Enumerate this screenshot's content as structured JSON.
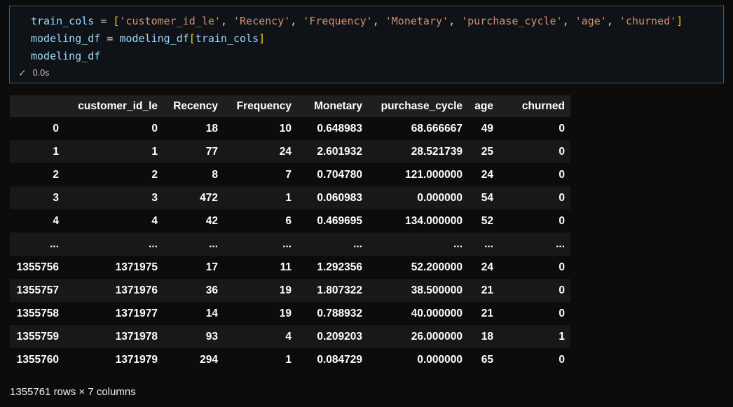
{
  "colors": {
    "page_background": "#0c0c0c",
    "cell_border": "#41596f",
    "token_variable": "#9cdcfe",
    "token_string": "#ce9178",
    "token_bracket": "#ffd700",
    "token_operator": "#d4d4d4",
    "success_green": "#73c991",
    "header_row_bg": "#1f1f1f",
    "stripe_row_bg": "#181818"
  },
  "code_cell": {
    "lines": [
      {
        "tokens": [
          {
            "c": "var",
            "t": "train_cols"
          },
          {
            "c": "op",
            "t": " = "
          },
          {
            "c": "bracket",
            "t": "["
          },
          {
            "c": "str",
            "t": "'customer_id_le'"
          },
          {
            "c": "op",
            "t": ", "
          },
          {
            "c": "str",
            "t": "'Recency'"
          },
          {
            "c": "op",
            "t": ", "
          },
          {
            "c": "str",
            "t": "'Frequency'"
          },
          {
            "c": "op",
            "t": ", "
          },
          {
            "c": "str",
            "t": "'Monetary'"
          },
          {
            "c": "op",
            "t": ", "
          },
          {
            "c": "str",
            "t": "'purchase_cycle'"
          },
          {
            "c": "op",
            "t": ", "
          },
          {
            "c": "str",
            "t": "'age'"
          },
          {
            "c": "op",
            "t": ", "
          },
          {
            "c": "str",
            "t": "'churned'"
          },
          {
            "c": "bracket",
            "t": "]"
          }
        ]
      },
      {
        "tokens": [
          {
            "c": "var",
            "t": "modeling_df"
          },
          {
            "c": "op",
            "t": " = "
          },
          {
            "c": "var",
            "t": "modeling_df"
          },
          {
            "c": "bracket",
            "t": "["
          },
          {
            "c": "var",
            "t": "train_cols"
          },
          {
            "c": "bracket",
            "t": "]"
          }
        ]
      },
      {
        "tokens": [
          {
            "c": "var",
            "t": "modeling_df"
          }
        ]
      }
    ],
    "check_glyph": "✓",
    "execution_time": "0.0s"
  },
  "table": {
    "headers": [
      "",
      "customer_id_le",
      "Recency",
      "Frequency",
      "Monetary",
      "purchase_cycle",
      "age",
      "churned"
    ],
    "rows": [
      [
        "0",
        "0",
        "18",
        "10",
        "0.648983",
        "68.666667",
        "49",
        "0"
      ],
      [
        "1",
        "1",
        "77",
        "24",
        "2.601932",
        "28.521739",
        "25",
        "0"
      ],
      [
        "2",
        "2",
        "8",
        "7",
        "0.704780",
        "121.000000",
        "24",
        "0"
      ],
      [
        "3",
        "3",
        "472",
        "1",
        "0.060983",
        "0.000000",
        "54",
        "0"
      ],
      [
        "4",
        "4",
        "42",
        "6",
        "0.469695",
        "134.000000",
        "52",
        "0"
      ],
      [
        "...",
        "...",
        "...",
        "...",
        "...",
        "...",
        "...",
        "..."
      ],
      [
        "1355756",
        "1371975",
        "17",
        "11",
        "1.292356",
        "52.200000",
        "24",
        "0"
      ],
      [
        "1355757",
        "1371976",
        "36",
        "19",
        "1.807322",
        "38.500000",
        "21",
        "0"
      ],
      [
        "1355758",
        "1371977",
        "14",
        "19",
        "0.788932",
        "40.000000",
        "21",
        "0"
      ],
      [
        "1355759",
        "1371978",
        "93",
        "4",
        "0.209203",
        "26.000000",
        "18",
        "1"
      ],
      [
        "1355760",
        "1371979",
        "294",
        "1",
        "0.084729",
        "0.000000",
        "65",
        "0"
      ]
    ],
    "footer": "1355761 rows × 7 columns"
  }
}
